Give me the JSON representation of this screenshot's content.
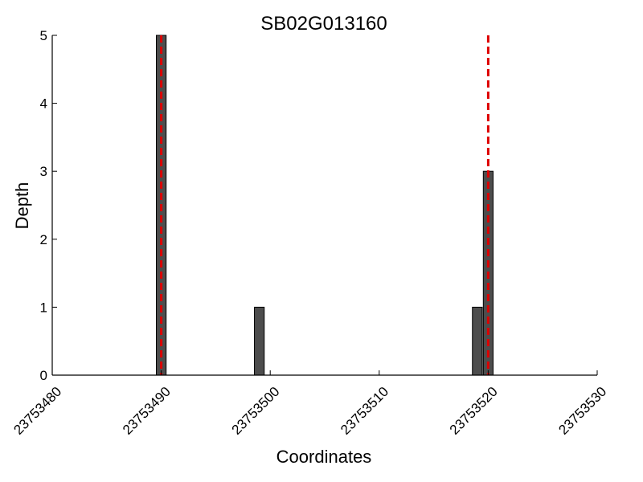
{
  "chart_data": {
    "type": "bar",
    "title": "SB02G013160",
    "xlabel": "Coordinates",
    "ylabel": "Depth",
    "xlim": [
      23753480,
      23753530
    ],
    "ylim": [
      0,
      5
    ],
    "x_ticks": [
      "23753480",
      "23753490",
      "23753500",
      "23753510",
      "23753520",
      "23753530"
    ],
    "y_ticks": [
      "0",
      "1",
      "2",
      "3",
      "4",
      "5"
    ],
    "bars": [
      {
        "x": 23753490,
        "value": 5
      },
      {
        "x": 23753499,
        "value": 1
      },
      {
        "x": 23753519,
        "value": 1
      },
      {
        "x": 23753520,
        "value": 3
      }
    ],
    "bar_width": 0.9,
    "reference_lines": [
      23753490,
      23753520
    ],
    "bar_color": "#4d4d4d",
    "reference_line_color": "#dd0000",
    "grid": false,
    "legend": "none"
  }
}
